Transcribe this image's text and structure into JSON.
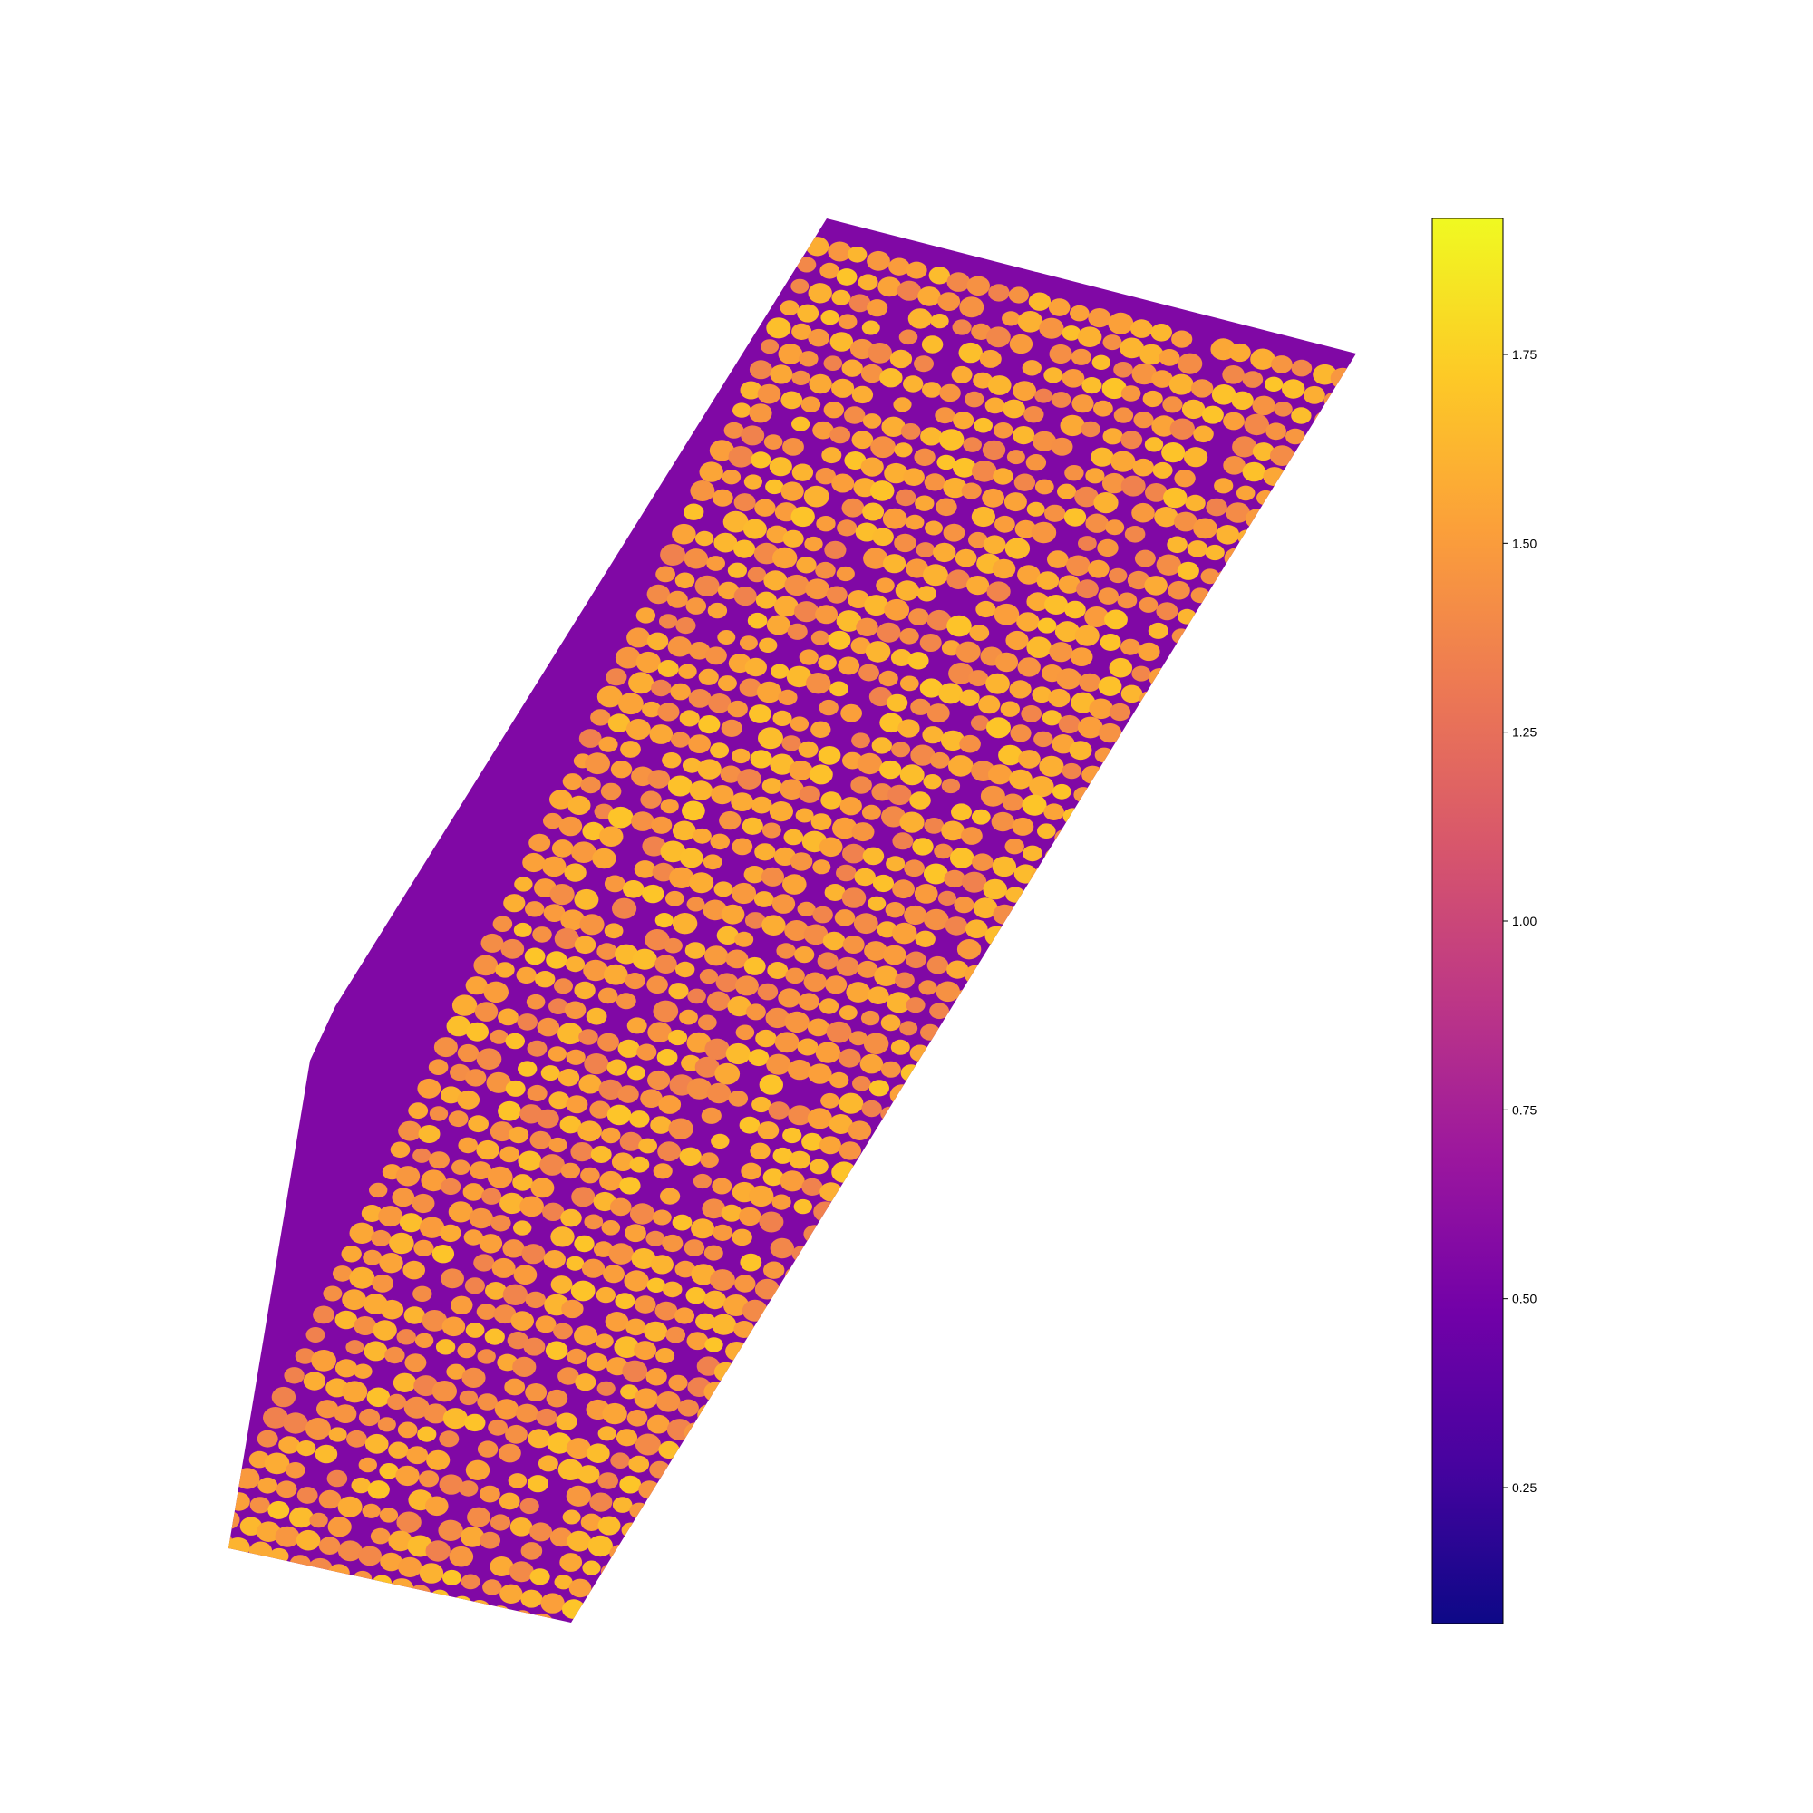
{
  "colorbar": {
    "colormap": "plasma",
    "colors": [
      "#0d0887",
      "#46039f",
      "#7201a8",
      "#9c179e",
      "#bd3786",
      "#d8576b",
      "#ed7953",
      "#fb9f3a",
      "#fdca26",
      "#f0f921"
    ],
    "range": [
      0.07,
      1.93
    ],
    "ticks": [
      {
        "value": 0.25,
        "label": "0.25"
      },
      {
        "value": 0.5,
        "label": "0.50"
      },
      {
        "value": 0.75,
        "label": "0.75"
      },
      {
        "value": 1.0,
        "label": "1.00"
      },
      {
        "value": 1.25,
        "label": "1.25"
      },
      {
        "value": 1.5,
        "label": "1.50"
      },
      {
        "value": 1.75,
        "label": "1.75"
      }
    ]
  },
  "field": {
    "background_value": 0.55,
    "canopy_value": 1.6,
    "row_count": 64,
    "trees_per_row": 28
  }
}
